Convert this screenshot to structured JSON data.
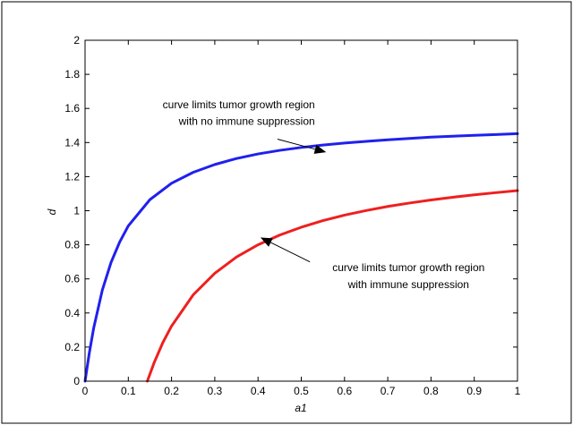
{
  "chart_data": {
    "type": "line",
    "title": "",
    "xlabel": "a1",
    "ylabel": "d",
    "xlim": [
      0,
      1
    ],
    "ylim": [
      0,
      2
    ],
    "xticks": [
      0,
      0.1,
      0.2,
      0.3,
      0.4,
      0.5,
      0.6,
      0.7,
      0.8,
      0.9,
      1
    ],
    "xtick_labels": [
      "0",
      "0.1",
      "0.2",
      "0.3",
      "0.4",
      "0.5",
      "0.6",
      "0.7",
      "0.8",
      "0.9",
      "1"
    ],
    "yticks": [
      0,
      0.2,
      0.4,
      0.6,
      0.8,
      1,
      1.2,
      1.4,
      1.6,
      1.8,
      2
    ],
    "ytick_labels": [
      "0",
      "0.2",
      "0.4",
      "0.6",
      "0.8",
      "1",
      "1.2",
      "1.4",
      "1.6",
      "1.8",
      "2"
    ],
    "grid": false,
    "legend": "none",
    "series": [
      {
        "color": "#2020ee",
        "x": [
          0,
          0.01,
          0.02,
          0.04,
          0.06,
          0.08,
          0.1,
          0.15,
          0.2,
          0.25,
          0.3,
          0.35,
          0.4,
          0.45,
          0.5,
          0.55,
          0.6,
          0.65,
          0.7,
          0.75,
          0.8,
          0.85,
          0.9,
          0.95,
          1.0
        ],
        "y": [
          0,
          0.168,
          0.312,
          0.535,
          0.696,
          0.816,
          0.911,
          1.065,
          1.161,
          1.225,
          1.271,
          1.306,
          1.333,
          1.354,
          1.371,
          1.385,
          1.397,
          1.407,
          1.416,
          1.424,
          1.432,
          1.437,
          1.442,
          1.447,
          1.452
        ]
      },
      {
        "color": "#ee2020",
        "x": [
          0.144,
          0.16,
          0.18,
          0.2,
          0.25,
          0.3,
          0.35,
          0.4,
          0.45,
          0.5,
          0.55,
          0.6,
          0.65,
          0.7,
          0.75,
          0.8,
          0.85,
          0.9,
          0.95,
          1.0
        ],
        "y": [
          0,
          0.11,
          0.227,
          0.323,
          0.506,
          0.633,
          0.728,
          0.8,
          0.857,
          0.903,
          0.942,
          0.974,
          1.001,
          1.025,
          1.045,
          1.063,
          1.079,
          1.093,
          1.106,
          1.118
        ]
      }
    ],
    "annotations": [
      {
        "lines": [
          "curve limits tumor growth region",
          "with no immune suppression"
        ],
        "align": "end",
        "text_x": 0.5315,
        "text_y": [
          1.6,
          1.505
        ],
        "arrow_from": [
          0.445,
          1.42
        ],
        "arrow_to": [
          0.555,
          1.345
        ]
      },
      {
        "lines": [
          "curve limits tumor growth region",
          "with immune suppression"
        ],
        "align": "middle",
        "text_x": 0.748,
        "text_y": [
          0.645,
          0.545
        ],
        "arrow_from": [
          0.52,
          0.7
        ],
        "arrow_to": [
          0.408,
          0.84
        ]
      }
    ]
  }
}
